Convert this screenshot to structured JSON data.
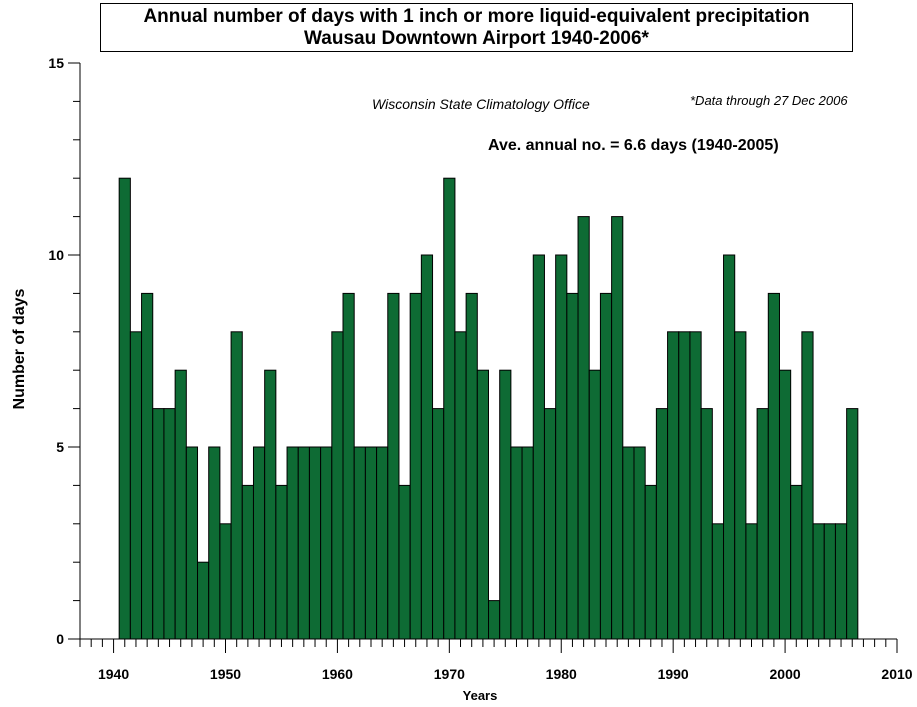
{
  "chart_data": {
    "type": "bar",
    "title": "Annual number of days with 1 inch or more liquid-equivalent precipitation",
    "subtitle": "Wausau Downtown Airport  1940-2006*",
    "xlabel": "Years",
    "ylabel": "Number of days",
    "credit": "Wisconsin State Climatology Office",
    "footnote": "*Data through 27 Dec 2006",
    "average_label": "Ave. annual no. = 6.6 days (1940-2005)",
    "xlim": [
      1937,
      2010
    ],
    "ylim": [
      0,
      15
    ],
    "x_ticks": [
      1940,
      1950,
      1960,
      1970,
      1980,
      1990,
      2000,
      2010
    ],
    "y_ticks": [
      0,
      5,
      10,
      15
    ],
    "bar_color": "#0e6b34",
    "grid": false,
    "x": [
      1941,
      1942,
      1943,
      1944,
      1945,
      1946,
      1947,
      1948,
      1949,
      1950,
      1951,
      1952,
      1953,
      1954,
      1955,
      1956,
      1957,
      1958,
      1959,
      1960,
      1961,
      1962,
      1963,
      1964,
      1965,
      1966,
      1967,
      1968,
      1969,
      1970,
      1971,
      1972,
      1973,
      1974,
      1975,
      1976,
      1977,
      1978,
      1979,
      1980,
      1981,
      1982,
      1983,
      1984,
      1985,
      1986,
      1987,
      1988,
      1989,
      1990,
      1991,
      1992,
      1993,
      1994,
      1995,
      1996,
      1997,
      1998,
      1999,
      2000,
      2001,
      2002,
      2003,
      2004,
      2005,
      2006
    ],
    "values": [
      12,
      8,
      9,
      6,
      6,
      7,
      5,
      2,
      5,
      3,
      8,
      4,
      5,
      7,
      4,
      5,
      5,
      5,
      5,
      8,
      9,
      5,
      5,
      5,
      9,
      4,
      9,
      10,
      6,
      12,
      8,
      9,
      7,
      1,
      7,
      5,
      5,
      10,
      6,
      10,
      9,
      11,
      7,
      9,
      11,
      5,
      5,
      4,
      6,
      8,
      8,
      8,
      6,
      3,
      10,
      8,
      3,
      6,
      9,
      7,
      4,
      8,
      3,
      3,
      3,
      6
    ]
  }
}
